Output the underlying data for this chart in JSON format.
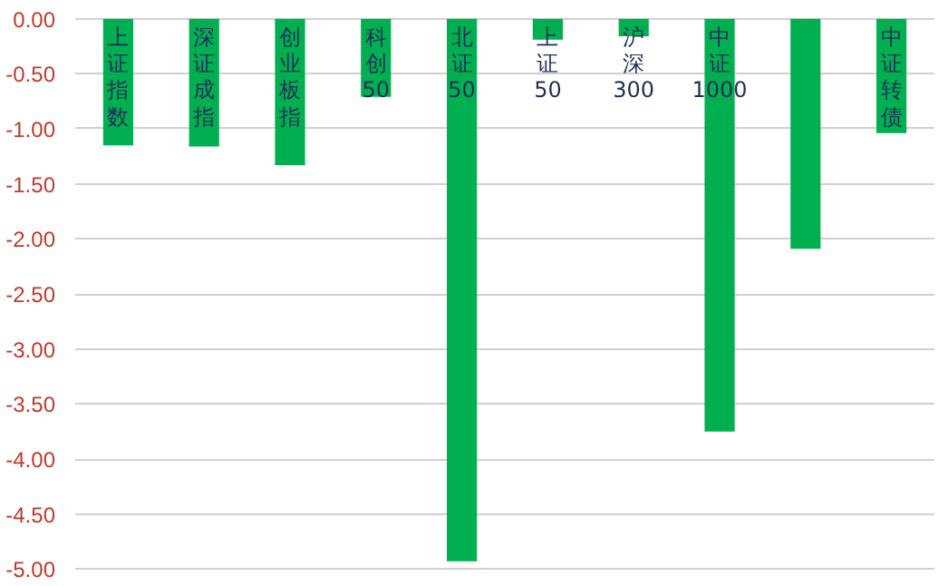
{
  "chart_data": {
    "type": "bar",
    "categories": [
      "上证指数",
      "深证成指",
      "创业板指",
      "科创50",
      "北证50",
      "上证50",
      "沪深300",
      "中证1000",
      null,
      "中证转债"
    ],
    "values": [
      -1.15,
      -1.16,
      -1.33,
      -0.71,
      -4.93,
      -0.19,
      -0.16,
      -3.75,
      -2.09,
      -1.04
    ],
    "color": "#00b050",
    "ylim": [
      -5,
      0
    ],
    "yticks": [
      {
        "value": 0,
        "label": "0.00"
      },
      {
        "value": -0.5,
        "label": "-0.50"
      },
      {
        "value": -1,
        "label": "-1.00"
      },
      {
        "value": -1.5,
        "label": "-1.50"
      },
      {
        "value": -2,
        "label": "-2.00"
      },
      {
        "value": -2.5,
        "label": "-2.50"
      },
      {
        "value": -3,
        "label": "-3.00"
      },
      {
        "value": -3.5,
        "label": "-3.50"
      },
      {
        "value": -4,
        "label": "-4.00"
      },
      {
        "value": -4.5,
        "label": "-4.50"
      },
      {
        "value": -5,
        "label": "-5.00"
      }
    ],
    "grid": "y"
  }
}
